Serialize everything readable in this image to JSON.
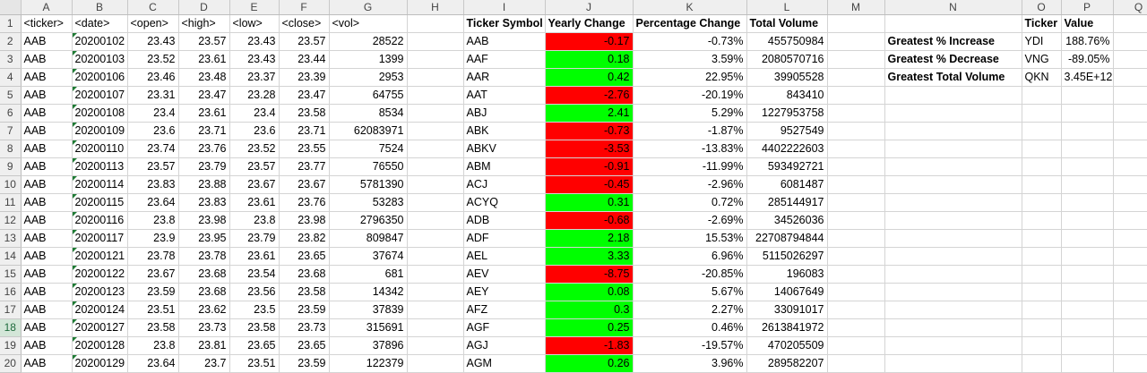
{
  "columns": [
    "",
    "A",
    "B",
    "C",
    "D",
    "E",
    "F",
    "G",
    "H",
    "I",
    "J",
    "K",
    "L",
    "M",
    "N",
    "O",
    "P",
    "Q"
  ],
  "header_row": [
    "<ticker>",
    "<date>",
    "<open>",
    "<high>",
    "<low>",
    "<close>",
    "<vol>"
  ],
  "summary_headers": [
    "Ticker Symbol",
    "Yearly Change",
    "Percentage Change",
    "Total Volume"
  ],
  "stats_headers": [
    "Ticker",
    "Value"
  ],
  "stats": [
    {
      "label": "Greatest % Increase",
      "ticker": "YDI",
      "value": "188.76%"
    },
    {
      "label": "Greatest % Decrease",
      "ticker": "VNG",
      "value": "-89.05%"
    },
    {
      "label": "Greatest Total Volume",
      "ticker": "QKN",
      "value": "3.45E+12"
    }
  ],
  "raw_rows": [
    [
      "AAB",
      "20200102",
      "23.43",
      "23.57",
      "23.43",
      "23.57",
      "28522"
    ],
    [
      "AAB",
      "20200103",
      "23.52",
      "23.61",
      "23.43",
      "23.44",
      "1399"
    ],
    [
      "AAB",
      "20200106",
      "23.46",
      "23.48",
      "23.37",
      "23.39",
      "2953"
    ],
    [
      "AAB",
      "20200107",
      "23.31",
      "23.47",
      "23.28",
      "23.47",
      "64755"
    ],
    [
      "AAB",
      "20200108",
      "23.4",
      "23.61",
      "23.4",
      "23.58",
      "8534"
    ],
    [
      "AAB",
      "20200109",
      "23.6",
      "23.71",
      "23.6",
      "23.71",
      "62083971"
    ],
    [
      "AAB",
      "20200110",
      "23.74",
      "23.76",
      "23.52",
      "23.55",
      "7524"
    ],
    [
      "AAB",
      "20200113",
      "23.57",
      "23.79",
      "23.57",
      "23.77",
      "76550"
    ],
    [
      "AAB",
      "20200114",
      "23.83",
      "23.88",
      "23.67",
      "23.67",
      "5781390"
    ],
    [
      "AAB",
      "20200115",
      "23.64",
      "23.83",
      "23.61",
      "23.76",
      "53283"
    ],
    [
      "AAB",
      "20200116",
      "23.8",
      "23.98",
      "23.8",
      "23.98",
      "2796350"
    ],
    [
      "AAB",
      "20200117",
      "23.9",
      "23.95",
      "23.79",
      "23.82",
      "809847"
    ],
    [
      "AAB",
      "20200121",
      "23.78",
      "23.78",
      "23.61",
      "23.65",
      "37674"
    ],
    [
      "AAB",
      "20200122",
      "23.67",
      "23.68",
      "23.54",
      "23.68",
      "681"
    ],
    [
      "AAB",
      "20200123",
      "23.59",
      "23.68",
      "23.56",
      "23.58",
      "14342"
    ],
    [
      "AAB",
      "20200124",
      "23.51",
      "23.62",
      "23.5",
      "23.59",
      "37839"
    ],
    [
      "AAB",
      "20200127",
      "23.58",
      "23.73",
      "23.58",
      "23.73",
      "315691"
    ],
    [
      "AAB",
      "20200128",
      "23.8",
      "23.81",
      "23.65",
      "23.65",
      "37896"
    ],
    [
      "AAB",
      "20200129",
      "23.64",
      "23.7",
      "23.51",
      "23.59",
      "122379"
    ]
  ],
  "summary_rows": [
    [
      "AAB",
      "-0.17",
      "-0.73%",
      "455750984"
    ],
    [
      "AAF",
      "0.18",
      "3.59%",
      "2080570716"
    ],
    [
      "AAR",
      "0.42",
      "22.95%",
      "39905528"
    ],
    [
      "AAT",
      "-2.76",
      "-20.19%",
      "843410"
    ],
    [
      "ABJ",
      "2.41",
      "5.29%",
      "1227953758"
    ],
    [
      "ABK",
      "-0.73",
      "-1.87%",
      "9527549"
    ],
    [
      "ABKV",
      "-3.53",
      "-13.83%",
      "4402222603"
    ],
    [
      "ABM",
      "-0.91",
      "-11.99%",
      "593492721"
    ],
    [
      "ACJ",
      "-0.45",
      "-2.96%",
      "6081487"
    ],
    [
      "ACYQ",
      "0.31",
      "0.72%",
      "285144917"
    ],
    [
      "ADB",
      "-0.68",
      "-2.69%",
      "34526036"
    ],
    [
      "ADF",
      "2.18",
      "15.53%",
      "22708794844"
    ],
    [
      "AEL",
      "3.33",
      "6.96%",
      "5115026297"
    ],
    [
      "AEV",
      "-8.75",
      "-20.85%",
      "196083"
    ],
    [
      "AEY",
      "0.08",
      "5.67%",
      "14067649"
    ],
    [
      "AFZ",
      "0.3",
      "2.27%",
      "33091017"
    ],
    [
      "AGF",
      "0.25",
      "0.46%",
      "2613841972"
    ],
    [
      "AGJ",
      "-1.83",
      "-19.57%",
      "470205509"
    ],
    [
      "AGM",
      "0.26",
      "3.96%",
      "289582207"
    ]
  ],
  "colors": {
    "positive": "#00ff00",
    "negative": "#ff0000",
    "row_header_selected": "#d3e6d8"
  }
}
